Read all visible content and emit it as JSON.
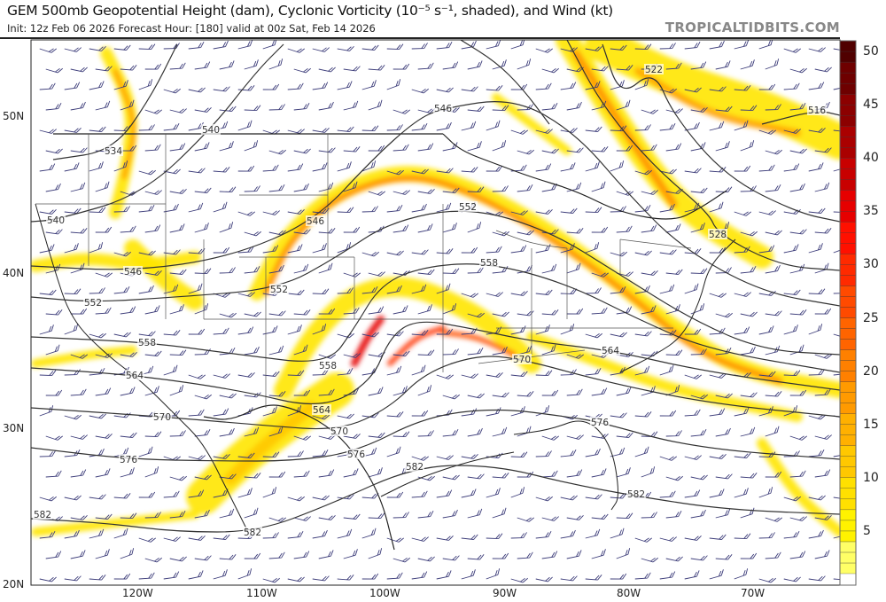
{
  "header": {
    "title": "GEM 500mb Geopotential Height (dam), Cyclonic Vorticity (10⁻⁵ s⁻¹, shaded), and Wind (kt)",
    "subtitle": "Init: 12z Feb 06 2026   Forecast Hour: [180]   valid at 00z Sat, Feb 14 2026",
    "brand": "TROPICALTIDBITS.COM"
  },
  "map": {
    "longitude_labels": [
      "120W",
      "110W",
      "100W",
      "90W",
      "80W",
      "70W"
    ],
    "latitude_labels": [
      "50N",
      "40N",
      "30N",
      "20N"
    ],
    "contour_labels": [
      "522",
      "516",
      "528",
      "534",
      "540",
      "540",
      "546",
      "546",
      "546",
      "552",
      "552",
      "552",
      "558",
      "558",
      "558",
      "564",
      "564",
      "564",
      "570",
      "570",
      "570",
      "576",
      "576",
      "576",
      "582",
      "582",
      "582",
      "582"
    ],
    "colors": {
      "contour": "#333333",
      "barb": "#3d3d7a",
      "border": "#222222",
      "state": "#555555"
    }
  },
  "colorbar": {
    "ticks": [
      "50",
      "45",
      "40",
      "35",
      "30",
      "25",
      "20",
      "15",
      "10",
      "5"
    ],
    "range": [
      1,
      51
    ],
    "colors_low_to_high": [
      "#ffff66",
      "#fff200",
      "#ffe000",
      "#ffc800",
      "#ffb000",
      "#ff9a00",
      "#ff8000",
      "#ff6400",
      "#ff4a00",
      "#ff2a00",
      "#ff1000",
      "#e60000",
      "#c80000",
      "#aa0000",
      "#8c0000",
      "#6e0000",
      "#500000"
    ]
  }
}
